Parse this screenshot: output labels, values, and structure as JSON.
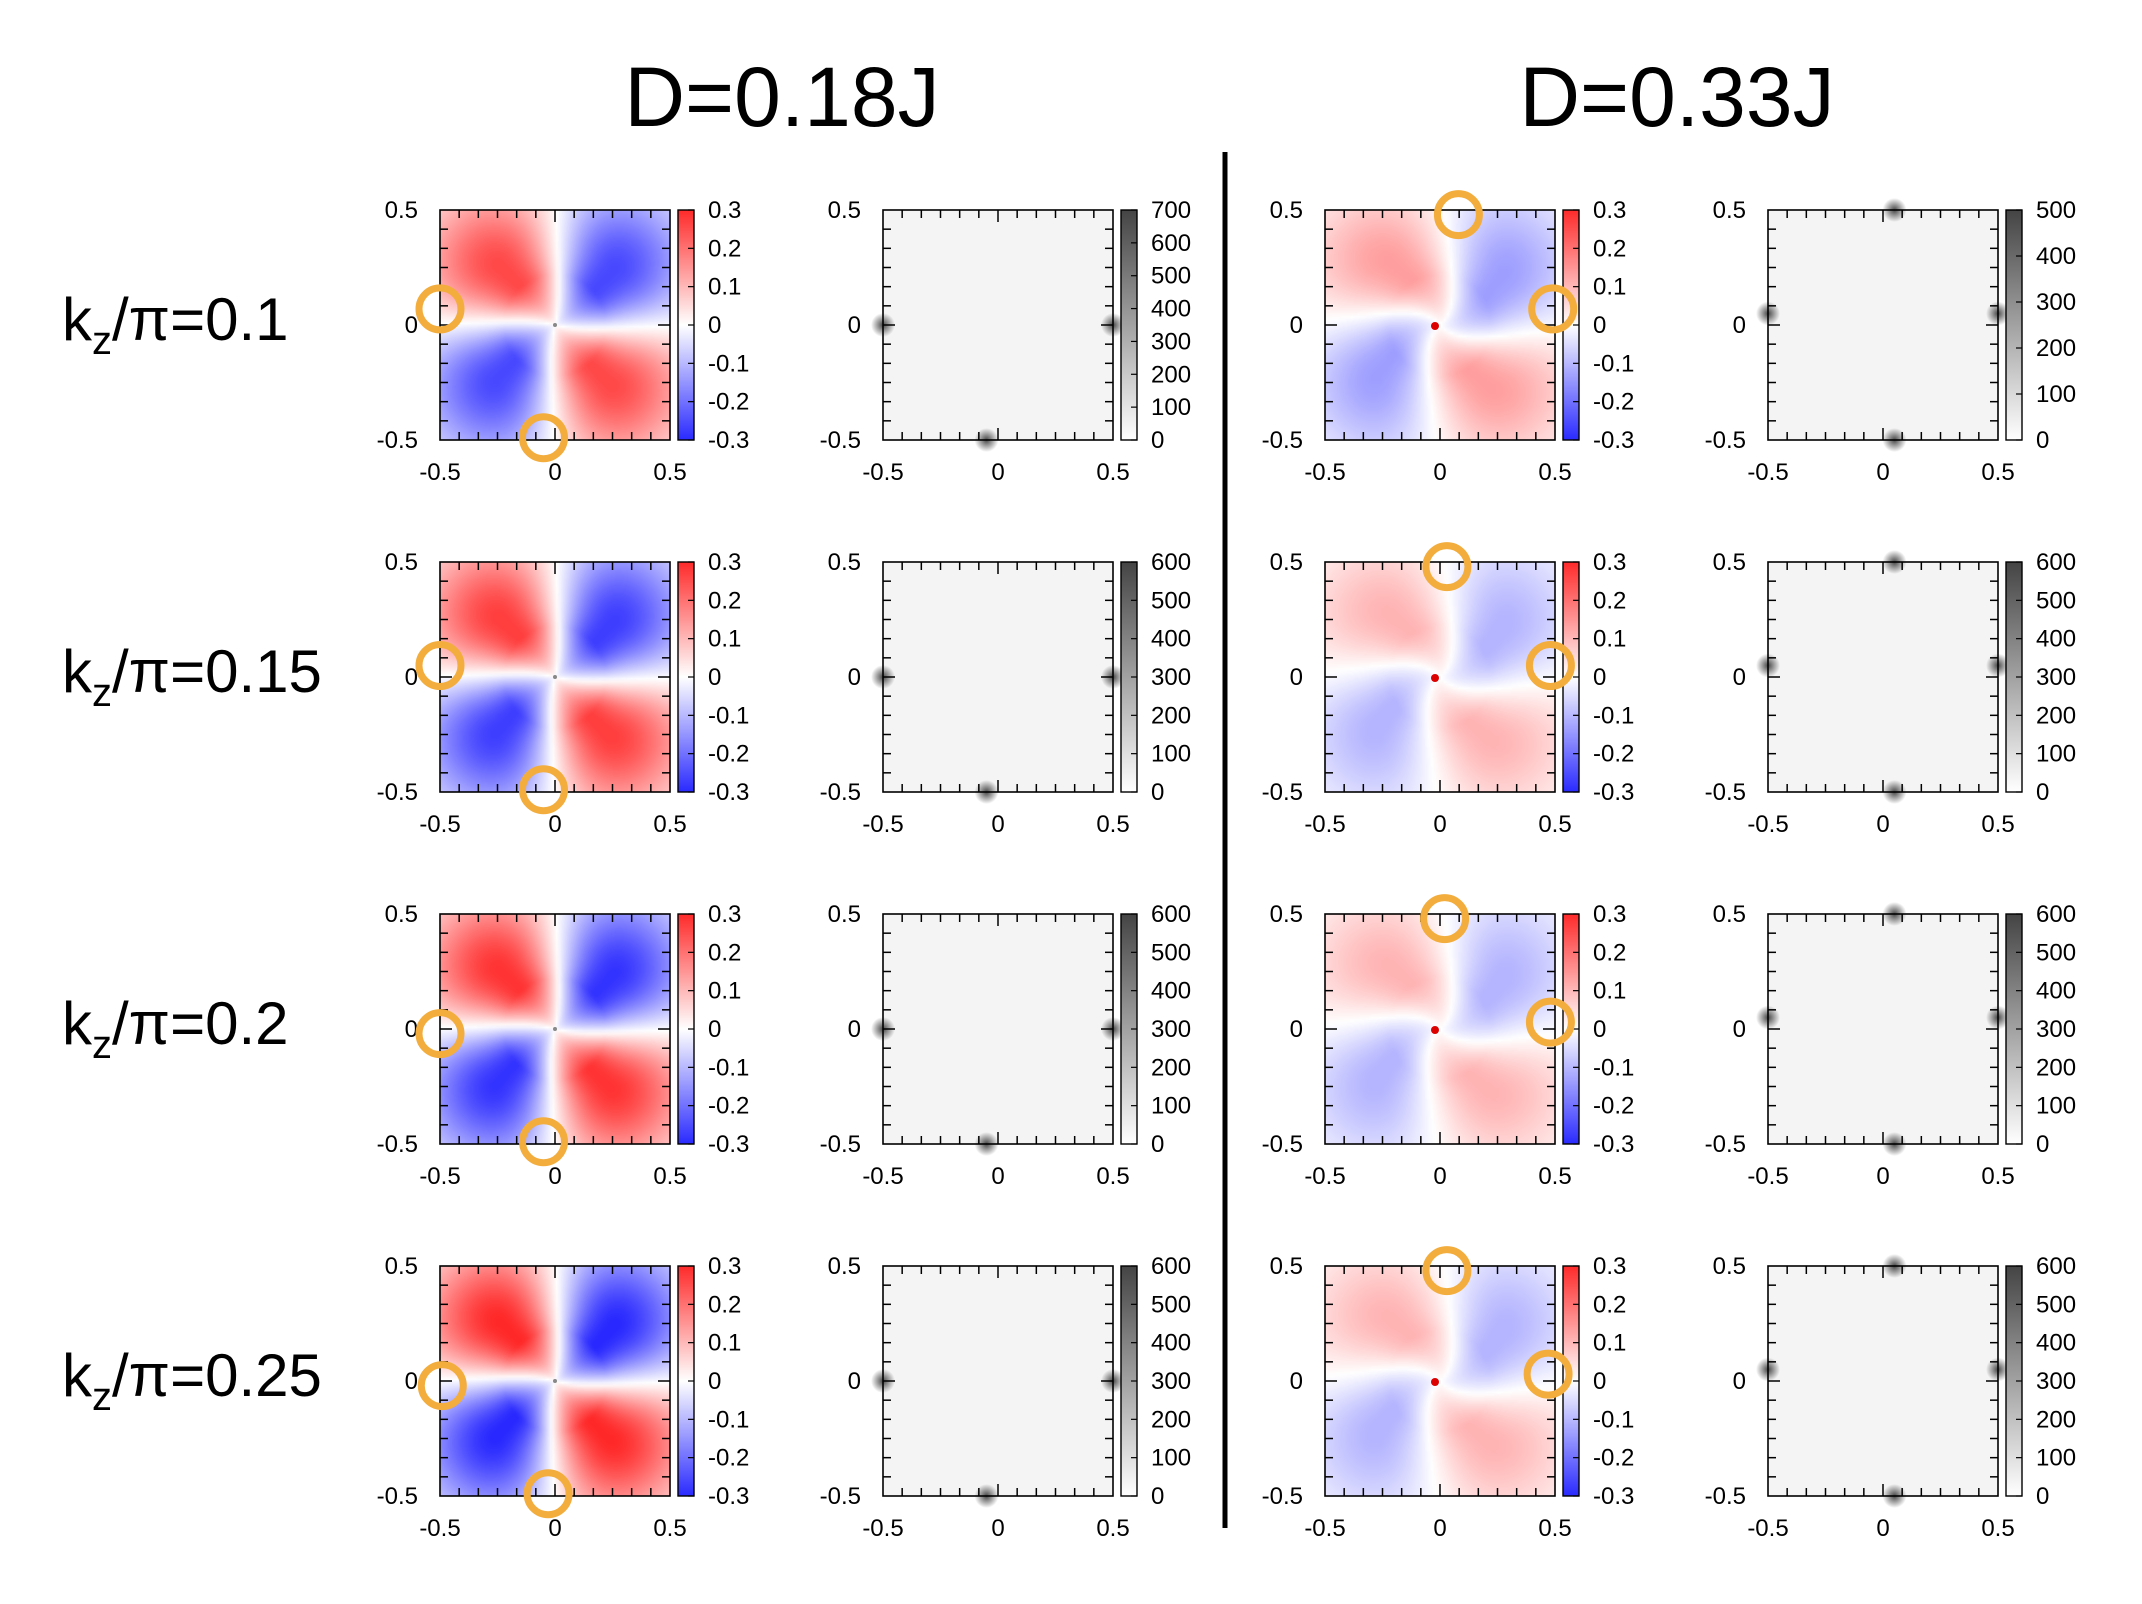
{
  "figure": {
    "columns": [
      {
        "title": "D=0.18J"
      },
      {
        "title": "D=0.33J"
      }
    ],
    "rows": [
      {
        "k_label": "k",
        "k_sub": "z",
        "k_rest": "/π=0.1"
      },
      {
        "k_label": "k",
        "k_sub": "z",
        "k_rest": "/π=0.15"
      },
      {
        "k_label": "k",
        "k_sub": "z",
        "k_rest": "/π=0.2"
      },
      {
        "k_label": "k",
        "k_sub": "z",
        "k_rest": "/π=0.25"
      }
    ],
    "axis_ticks": [
      "-0.5",
      "0",
      "0.5"
    ],
    "berry_colorbar_ticks": [
      "0.3",
      "0.2",
      "0.1",
      "0",
      "-0.1",
      "-0.2",
      "-0.3"
    ],
    "gray_colorbar_ticks": [
      [
        "700",
        "600",
        "500",
        "400",
        "300",
        "200",
        "100",
        "0"
      ],
      [
        "500",
        "400",
        "300",
        "200",
        "100",
        "0"
      ],
      [
        "600",
        "500",
        "400",
        "300",
        "200",
        "100",
        "0"
      ],
      [
        "600",
        "500",
        "400",
        "300",
        "200",
        "100",
        "0"
      ],
      [
        "600",
        "500",
        "400",
        "300",
        "200",
        "100",
        "0"
      ],
      [
        "600",
        "500",
        "400",
        "300",
        "200",
        "100",
        "0"
      ],
      [
        "600",
        "500",
        "400",
        "300",
        "200",
        "100",
        "0"
      ],
      [
        "600",
        "500",
        "400",
        "300",
        "200",
        "100",
        "0"
      ]
    ],
    "colors": {
      "positive": "#ff2a2a",
      "negative": "#2a2aff",
      "highlight_ring": "#f2ad3d",
      "gray_max": "#444444"
    },
    "berry_strength": [
      [
        0.85,
        0.45
      ],
      [
        0.9,
        0.35
      ],
      [
        0.95,
        0.35
      ],
      [
        1.0,
        0.35
      ]
    ]
  }
}
